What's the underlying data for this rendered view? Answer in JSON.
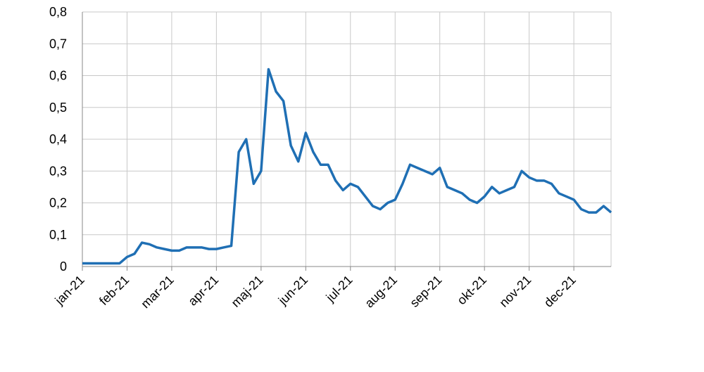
{
  "chart_data": {
    "type": "line",
    "categories": [
      "jan-21",
      null,
      null,
      null,
      null,
      null,
      "feb-21",
      null,
      null,
      null,
      null,
      null,
      "mar-21",
      null,
      null,
      null,
      null,
      null,
      "apr-21",
      null,
      null,
      null,
      null,
      null,
      "maj-21",
      null,
      null,
      null,
      null,
      null,
      "jun-21",
      null,
      null,
      null,
      null,
      null,
      "jul-21",
      null,
      null,
      null,
      null,
      null,
      "aug-21",
      null,
      null,
      null,
      null,
      null,
      "sep-21",
      null,
      null,
      null,
      null,
      null,
      "okt-21",
      null,
      null,
      null,
      null,
      null,
      "nov-21",
      null,
      null,
      null,
      null,
      null,
      "dec-21",
      null,
      null,
      null,
      null,
      null
    ],
    "series": [
      {
        "color": "#1f6fb4",
        "values": [
          0.01,
          0.01,
          0.01,
          0.01,
          0.01,
          0.01,
          0.03,
          0.04,
          0.075,
          0.07,
          0.06,
          0.055,
          0.05,
          0.05,
          0.06,
          0.06,
          0.06,
          0.055,
          0.055,
          0.06,
          0.065,
          0.36,
          0.4,
          0.26,
          0.3,
          0.62,
          0.55,
          0.52,
          0.38,
          0.33,
          0.42,
          0.36,
          0.32,
          0.32,
          0.27,
          0.24,
          0.26,
          0.25,
          0.22,
          0.19,
          0.18,
          0.2,
          0.21,
          0.26,
          0.32,
          0.31,
          0.3,
          0.29,
          0.31,
          0.25,
          0.24,
          0.23,
          0.21,
          0.2,
          0.22,
          0.25,
          0.23,
          0.24,
          0.25,
          0.3,
          0.28,
          0.27,
          0.27,
          0.26,
          0.23,
          0.22,
          0.21,
          0.18,
          0.17,
          0.17,
          0.19,
          0.17
        ]
      }
    ],
    "ylim": [
      0,
      0.8
    ],
    "yticks": [
      0,
      {
        "value": 0.1,
        "label": "0,1"
      },
      {
        "value": 0.2,
        "label": "0,2"
      },
      {
        "value": 0.3,
        "label": "0,3"
      },
      {
        "value": 0.4,
        "label": "0,4"
      },
      {
        "value": 0.5,
        "label": "0,5"
      },
      {
        "value": 0.6,
        "label": "0,6"
      },
      {
        "value": 0.7,
        "label": "0,7"
      },
      {
        "value": 0.8,
        "label": "0,8"
      }
    ],
    "grid": true
  }
}
